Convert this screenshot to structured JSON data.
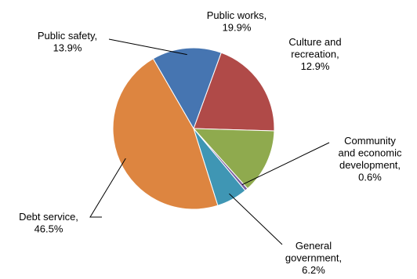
{
  "chart_data": {
    "type": "pie",
    "title": "",
    "slices": [
      {
        "label": [
          "Public works,",
          "19.9%"
        ],
        "value": 19.9,
        "color": "#b04a48"
      },
      {
        "label": [
          "Culture and",
          "recreation,",
          "12.9%"
        ],
        "value": 12.9,
        "color": "#8faa4e"
      },
      {
        "label": [
          "Community",
          "and economic",
          "development,",
          "0.6%"
        ],
        "value": 0.6,
        "color": "#7a5fa0"
      },
      {
        "label": [
          "General",
          "government,",
          "6.2%"
        ],
        "value": 6.2,
        "color": "#3f96b4"
      },
      {
        "label": [
          "Debt service,",
          "46.5%"
        ],
        "value": 46.5,
        "color": "#dd8540"
      },
      {
        "label": [
          "Public safety,",
          "13.9%"
        ],
        "value": 13.9,
        "color": "#4675b1"
      }
    ]
  }
}
